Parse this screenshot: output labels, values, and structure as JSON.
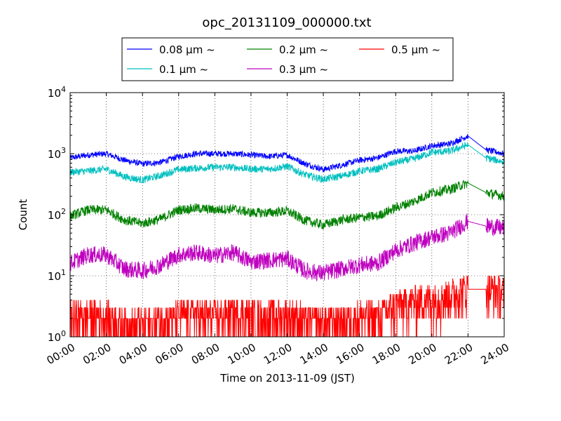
{
  "chart_data": {
    "type": "line",
    "title": "opc_20131109_000000.txt",
    "xlabel": "Time on 2013-11-09 (JST)",
    "ylabel": "Count",
    "y_scale": "log",
    "xlim": [
      "00:00",
      "24:00"
    ],
    "ylim": [
      1,
      10000
    ],
    "x_ticks": [
      "00:00",
      "02:00",
      "04:00",
      "06:00",
      "08:00",
      "10:00",
      "12:00",
      "14:00",
      "16:00",
      "18:00",
      "20:00",
      "22:00",
      "24:00"
    ],
    "y_ticks": [
      {
        "base": "10",
        "exp": "0"
      },
      {
        "base": "10",
        "exp": "1"
      },
      {
        "base": "10",
        "exp": "2"
      },
      {
        "base": "10",
        "exp": "3"
      },
      {
        "base": "10",
        "exp": "4"
      }
    ],
    "grid": true,
    "legend_position": "top-center",
    "x": [
      "00:00",
      "01:00",
      "02:00",
      "03:00",
      "04:00",
      "05:00",
      "06:00",
      "07:00",
      "08:00",
      "09:00",
      "10:00",
      "11:00",
      "12:00",
      "13:00",
      "14:00",
      "15:00",
      "16:00",
      "17:00",
      "18:00",
      "19:00",
      "20:00",
      "21:00",
      "22:00",
      "23:00",
      "24:00"
    ],
    "series": [
      {
        "name": "0.08 μm ~",
        "color": "#0000ff",
        "values": [
          850,
          950,
          1000,
          780,
          680,
          720,
          900,
          1000,
          1000,
          1000,
          950,
          900,
          950,
          680,
          550,
          650,
          780,
          850,
          1100,
          1100,
          1350,
          1450,
          1950,
          1150,
          1000
        ]
      },
      {
        "name": "0.1 μm ~",
        "color": "#00bfbf",
        "values": [
          500,
          520,
          560,
          420,
          370,
          440,
          550,
          580,
          600,
          600,
          560,
          560,
          620,
          450,
          380,
          430,
          520,
          560,
          720,
          820,
          1050,
          1100,
          1400,
          850,
          730
        ]
      },
      {
        "name": "0.2 μm ~",
        "color": "#008000",
        "values": [
          95,
          120,
          120,
          82,
          72,
          85,
          120,
          128,
          120,
          125,
          108,
          108,
          115,
          80,
          68,
          82,
          90,
          95,
          130,
          165,
          230,
          260,
          330,
          230,
          200
        ]
      },
      {
        "name": "0.3 μm ~",
        "color": "#bf00bf",
        "values": [
          16,
          22,
          22,
          13,
          12,
          15,
          22,
          24,
          21,
          24,
          17,
          18,
          19,
          12,
          11,
          13,
          15,
          16,
          26,
          34,
          43,
          50,
          78,
          65,
          60
        ]
      },
      {
        "name": "0.5 μm ~",
        "color": "#ff0000",
        "values": [
          2,
          2,
          2,
          1.5,
          1.5,
          1.8,
          2,
          2.2,
          2,
          2.3,
          2,
          2,
          2.2,
          1.8,
          1.6,
          1.8,
          2,
          2,
          3,
          3.5,
          4,
          4.5,
          6,
          6,
          5
        ]
      }
    ]
  }
}
